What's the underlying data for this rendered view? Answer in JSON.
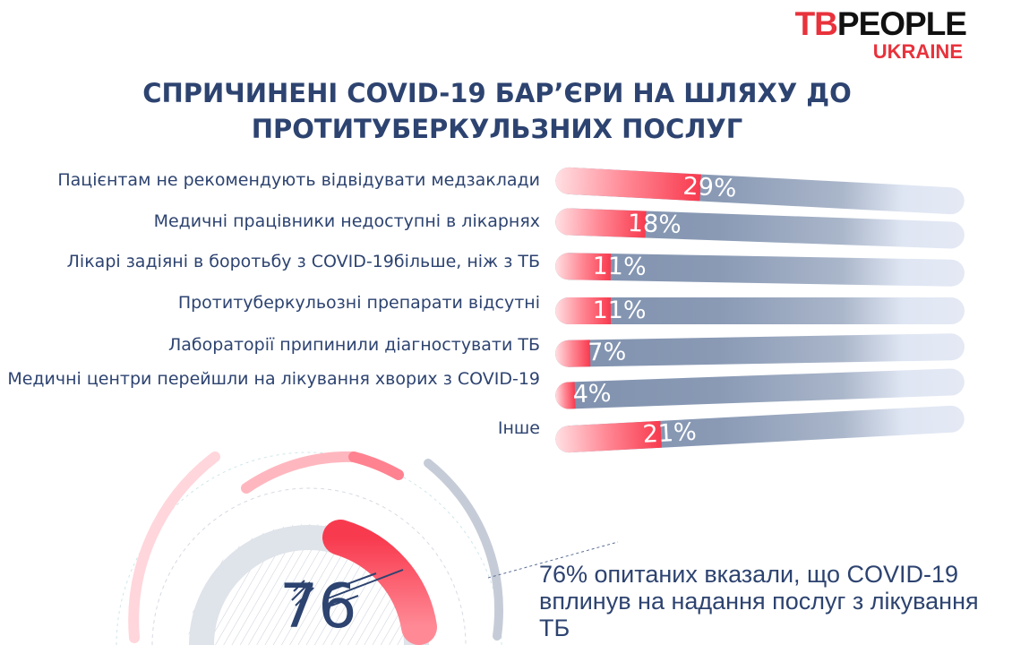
{
  "logo": {
    "tb": "TB",
    "people": "PEOPLE",
    "country": "UKRAINE"
  },
  "title": "СПРИЧИНЕНІ COVID-19 БАР’ЄРИ НА ШЛЯХУ ДО ПРОТИТУБЕРКУЛЬЗНИХ ПОСЛУГ",
  "chart_data": {
    "type": "bar",
    "title": "СПРИЧИНЕНІ COVID-19 БАР’ЄРИ НА ШЛЯХУ ДО ПРОТИТУБЕРКУЛЬЗНИХ ПОСЛУГ",
    "categories": [
      "Пацієнтам не рекомендують відвідувати медзаклади",
      "Медичні працівники недоступні в лікарнях",
      "Лікарі задіяні в боротьбу з COVID-19більше, ніж з ТБ",
      "Протитуберкульозні препарати відсутні",
      "Лабораторії припинили діагностувати ТБ",
      "Медичні центри перейшли на лікування хворих з COVID-19",
      "Інше"
    ],
    "values": [
      29,
      18,
      11,
      11,
      7,
      4,
      21
    ],
    "labels": [
      "29%",
      "18%",
      "11%",
      "11%",
      "7%",
      "4%",
      "21%"
    ],
    "unit": "%",
    "colors": {
      "fill": "#f83a4e",
      "track": "#8a9ab5"
    }
  },
  "summary": {
    "value": "76",
    "text": "76% опитаних вказали, що COVID-19 вплинув на надання послуг з лікування ТБ"
  }
}
